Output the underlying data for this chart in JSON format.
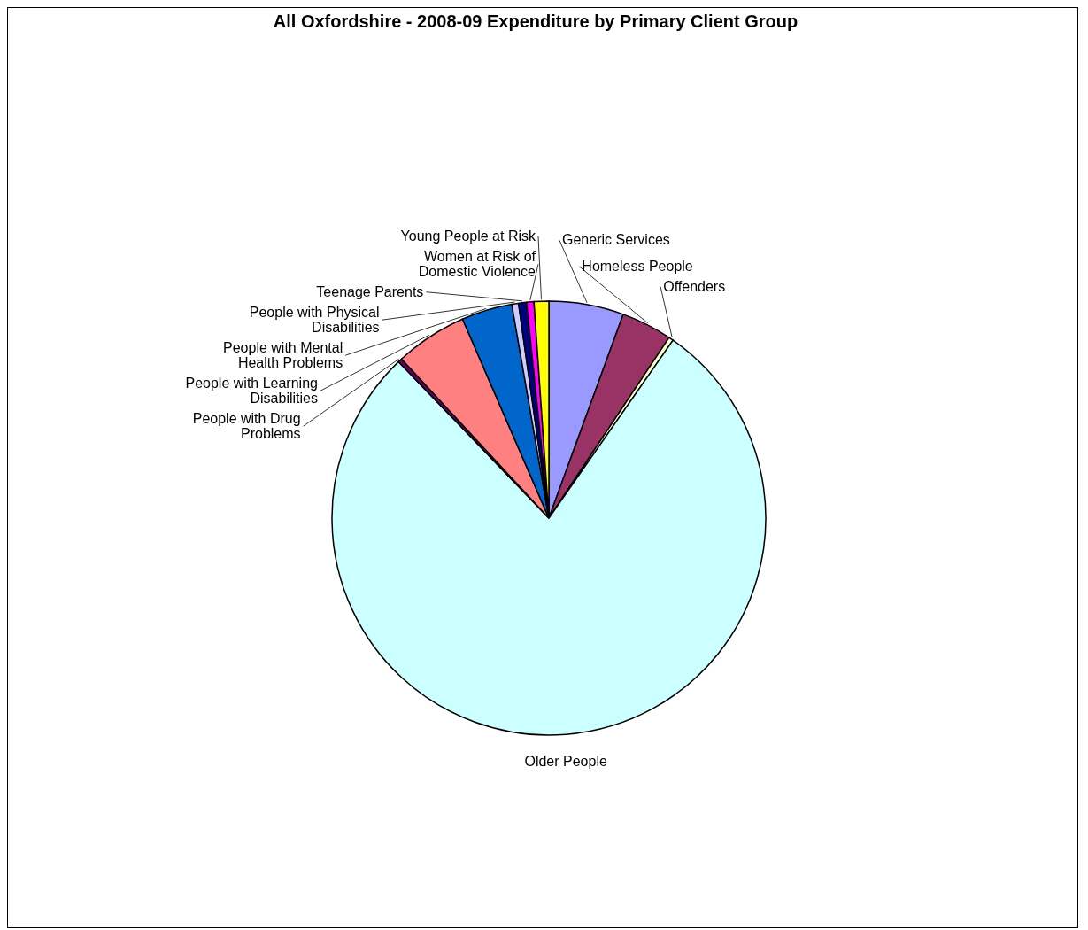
{
  "chart_data": {
    "type": "pie",
    "title": "All Oxfordshire - 2008-09 Expenditure by Primary Client Group",
    "categories": [
      "Generic Services",
      "Homeless People",
      "Offenders",
      "Older People",
      "People with Drug Problems",
      "People with Learning Disabilities",
      "People with Mental Health Problems",
      "People with Physical Disabilities",
      "Teenage Parents",
      "Women at Risk of Domestic Violence",
      "Young People at Risk"
    ],
    "values": [
      5.6,
      3.8,
      0.35,
      78.5,
      0.3,
      5.4,
      3.8,
      0.5,
      0.6,
      0.55,
      1.1
    ],
    "colors": [
      "#9999ff",
      "#993366",
      "#ffffcc",
      "#ccffff",
      "#660066",
      "#ff8080",
      "#0066cc",
      "#ccccff",
      "#000080",
      "#ff00ff",
      "#ffff00"
    ],
    "legend": false
  }
}
